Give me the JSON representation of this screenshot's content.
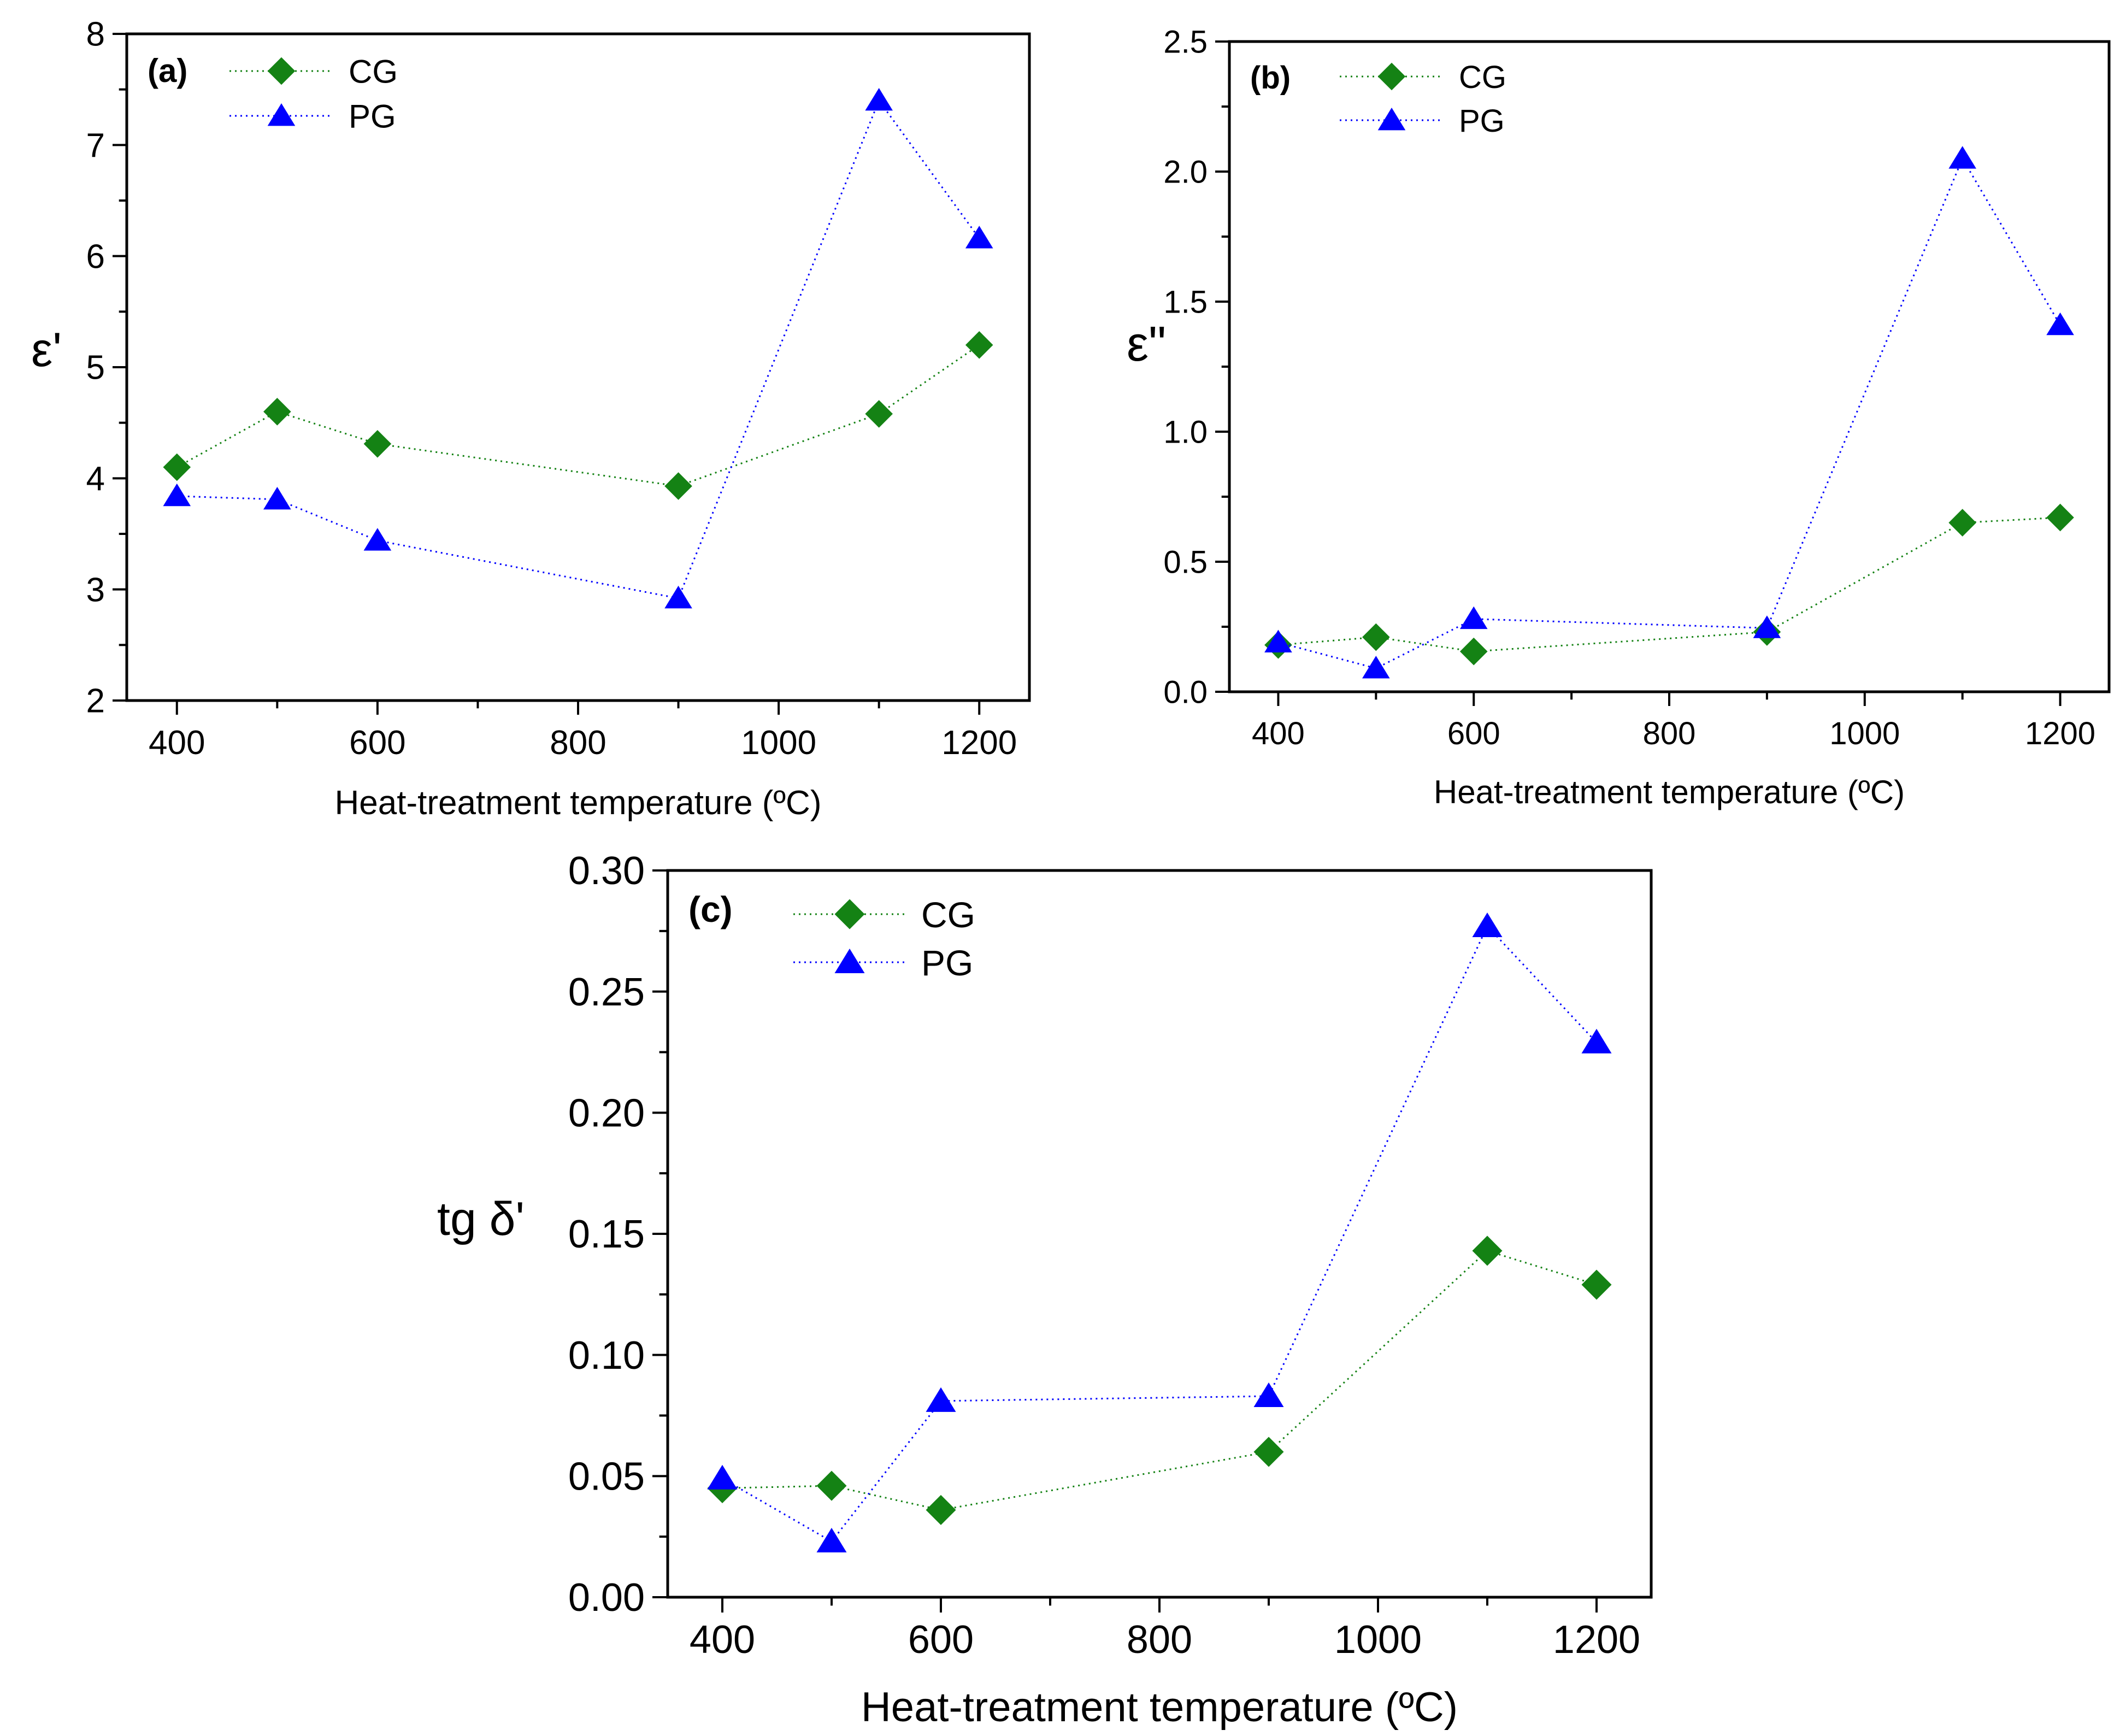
{
  "colors": {
    "cg": "#148214",
    "pg": "#0000ff",
    "axis": "#000000"
  },
  "chart_data": [
    {
      "id": "a",
      "type": "line",
      "panel_label": "(a)",
      "title": "",
      "xlabel": "Heat-treatment temperature (ºC)",
      "ylabel": "ε'",
      "xlim": [
        350,
        1250
      ],
      "ylim": [
        2,
        8
      ],
      "xticks": [
        400,
        600,
        800,
        1000,
        1200
      ],
      "xticklabels": [
        "400",
        "600",
        "800",
        "1000",
        "1200"
      ],
      "yticks": [
        2,
        3,
        4,
        5,
        6,
        7,
        8
      ],
      "yticklabels": [
        "2",
        "3",
        "4",
        "5",
        "6",
        "7",
        "8"
      ],
      "legend": "top-left",
      "x": [
        400,
        500,
        600,
        900,
        1100,
        1200
      ],
      "series": [
        {
          "name": "CG",
          "marker": "diamond",
          "values": [
            4.1,
            4.6,
            4.31,
            3.93,
            4.58,
            5.2
          ]
        },
        {
          "name": "PG",
          "marker": "triangle",
          "values": [
            3.84,
            3.81,
            3.44,
            2.92,
            7.4,
            6.16
          ]
        }
      ]
    },
    {
      "id": "b",
      "type": "line",
      "panel_label": "(b)",
      "title": "",
      "xlabel": "Heat-treatment temperature (ºC)",
      "ylabel": "ε\"",
      "xlim": [
        350,
        1250
      ],
      "ylim": [
        0.0,
        2.5
      ],
      "xticks": [
        400,
        600,
        800,
        1000,
        1200
      ],
      "xticklabels": [
        "400",
        "600",
        "800",
        "1000",
        "1200"
      ],
      "yticks": [
        0,
        0.5,
        1.0,
        1.5,
        2.0,
        2.5
      ],
      "yticklabels": [
        "0.0",
        "0.5",
        "1.0",
        "1.5",
        "2.0",
        "2.5"
      ],
      "legend": "top-left",
      "x": [
        400,
        500,
        600,
        900,
        1100,
        1200
      ],
      "series": [
        {
          "name": "CG",
          "marker": "diamond",
          "values": [
            0.18,
            0.21,
            0.155,
            0.23,
            0.65,
            0.67
          ]
        },
        {
          "name": "PG",
          "marker": "triangle",
          "values": [
            0.19,
            0.09,
            0.28,
            0.245,
            2.05,
            1.41
          ]
        }
      ]
    },
    {
      "id": "c",
      "type": "line",
      "panel_label": "(c)",
      "title": "",
      "xlabel": "Heat-treatment temperature (ºC)",
      "ylabel": "tg δ'",
      "xlim": [
        350,
        1250
      ],
      "ylim": [
        0.0,
        0.3
      ],
      "xticks": [
        400,
        600,
        800,
        1000,
        1200
      ],
      "xticklabels": [
        "400",
        "600",
        "800",
        "1000",
        "1200"
      ],
      "yticks": [
        0,
        0.05,
        0.1,
        0.15,
        0.2,
        0.25,
        0.3
      ],
      "yticklabels": [
        "0.00",
        "0.05",
        "0.10",
        "0.15",
        "0.20",
        "0.25",
        "0.30"
      ],
      "legend": "top-left",
      "x": [
        400,
        500,
        600,
        900,
        1100,
        1200
      ],
      "series": [
        {
          "name": "CG",
          "marker": "diamond",
          "values": [
            0.045,
            0.046,
            0.036,
            0.06,
            0.143,
            0.129
          ]
        },
        {
          "name": "PG",
          "marker": "triangle",
          "values": [
            0.049,
            0.023,
            0.081,
            0.083,
            0.277,
            0.229
          ]
        }
      ]
    }
  ]
}
